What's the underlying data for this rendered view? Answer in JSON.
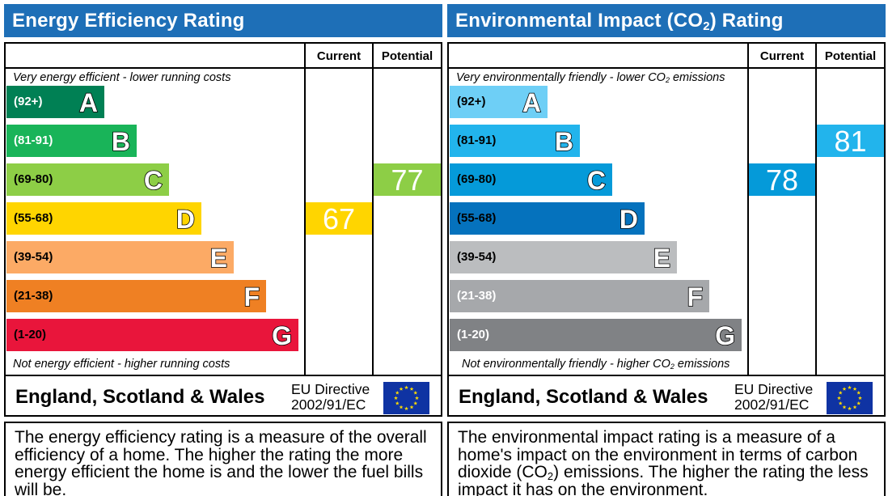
{
  "chart_data": [
    {
      "type": "bar",
      "title": "Energy Efficiency Rating",
      "columns": [
        "Current",
        "Potential"
      ],
      "top_note": "Very energy efficient - lower running costs",
      "bottom_note": "Not energy efficient - higher running costs",
      "bands": [
        {
          "letter": "A",
          "range": "(92+)",
          "color": "#008054",
          "text_color": "#ffffff"
        },
        {
          "letter": "B",
          "range": "(81-91)",
          "color": "#19b459",
          "text_color": "#ffffff"
        },
        {
          "letter": "C",
          "range": "(69-80)",
          "color": "#8dce46",
          "text_color": "#000000"
        },
        {
          "letter": "D",
          "range": "(55-68)",
          "color": "#ffd500",
          "text_color": "#000000"
        },
        {
          "letter": "E",
          "range": "(39-54)",
          "color": "#fcaa65",
          "text_color": "#000000"
        },
        {
          "letter": "F",
          "range": "(21-38)",
          "color": "#ef8023",
          "text_color": "#000000"
        },
        {
          "letter": "G",
          "range": "(1-20)",
          "color": "#e9153b",
          "text_color": "#000000"
        }
      ],
      "current": {
        "value": 67,
        "band": "D",
        "color": "#ffd500"
      },
      "potential": {
        "value": 77,
        "band": "C",
        "color": "#8dce46"
      },
      "region": "England, Scotland & Wales",
      "directive_line1": "EU Directive",
      "directive_line2": "2002/91/EC",
      "description": "The energy efficiency rating is a measure of the overall efficiency of a home. The higher the rating the more energy efficient the home is and the lower the fuel bills will be."
    },
    {
      "type": "bar",
      "title_pre": "Environmental Impact (CO",
      "title_sub": "2",
      "title_post": ") Rating",
      "columns": [
        "Current",
        "Potential"
      ],
      "top_note_pre": "Very environmentally friendly - lower CO",
      "top_note_sub": "2",
      "top_note_post": " emissions",
      "bottom_note_pre": "Not environmentally friendly - higher CO",
      "bottom_note_sub": "2",
      "bottom_note_post": " emissions",
      "bands": [
        {
          "letter": "A",
          "range": "(92+)",
          "color": "#6ecff6",
          "text_color": "#000000"
        },
        {
          "letter": "B",
          "range": "(81-91)",
          "color": "#22b4ec",
          "text_color": "#000000"
        },
        {
          "letter": "C",
          "range": "(69-80)",
          "color": "#059ad9",
          "text_color": "#000000"
        },
        {
          "letter": "D",
          "range": "(55-68)",
          "color": "#0572bd",
          "text_color": "#000000"
        },
        {
          "letter": "E",
          "range": "(39-54)",
          "color": "#bbbdbf",
          "text_color": "#000000"
        },
        {
          "letter": "F",
          "range": "(21-38)",
          "color": "#a6a8ab",
          "text_color": "#ffffff"
        },
        {
          "letter": "G",
          "range": "(1-20)",
          "color": "#808285",
          "text_color": "#ffffff"
        }
      ],
      "current": {
        "value": 78,
        "band": "C",
        "color": "#059ad9"
      },
      "potential": {
        "value": 81,
        "band": "B",
        "color": "#22b4ec"
      },
      "region": "England, Scotland & Wales",
      "directive_line1": "EU Directive",
      "directive_line2": "2002/91/EC",
      "description_pre": "The environmental impact rating is a measure of a home's impact on the environment in terms of carbon dioxide (CO",
      "description_sub": "2",
      "description_post": ") emissions. The higher the rating the less impact it has on the environment."
    }
  ],
  "icons": {
    "flag": "eu-flag-icon"
  },
  "colors": {
    "header_bg": "#1e6fb7"
  }
}
